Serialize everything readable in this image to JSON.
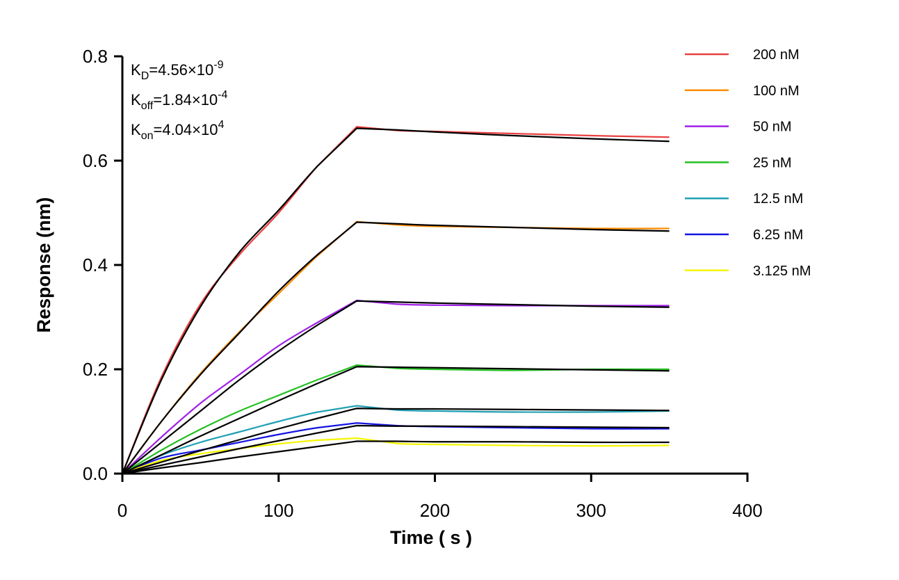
{
  "chart_data": {
    "type": "line",
    "xlabel": "Time ( s )",
    "ylabel": "Response (nm)",
    "xlim": [
      0,
      400
    ],
    "ylim": [
      0,
      0.8
    ],
    "xticks": [
      "0",
      "100",
      "200",
      "300",
      "400"
    ],
    "yticks": [
      "0.0",
      "0.2",
      "0.4",
      "0.6",
      "0.8"
    ],
    "grid": false,
    "legend_position": "right",
    "annotations": [
      {
        "main": "K",
        "sub": "D",
        "value": "=4.56×10",
        "exp": "-9"
      },
      {
        "main": "K",
        "sub": "off",
        "value": "=1.84×10",
        "exp": "-4"
      },
      {
        "main": "K",
        "sub": "on",
        "value": "=4.04×10",
        "exp": "4"
      }
    ],
    "x": [
      0,
      25,
      50,
      75,
      100,
      125,
      150,
      175,
      200,
      250,
      300,
      350
    ],
    "fit_color": "#000000",
    "series": [
      {
        "name": "200 nM",
        "color": "#e8403f",
        "values": [
          0,
          0.185,
          0.325,
          0.42,
          0.5,
          0.59,
          0.665,
          0.658,
          0.656,
          0.652,
          0.648,
          0.645
        ],
        "fit": [
          0,
          0.18,
          0.32,
          0.425,
          0.505,
          0.59,
          0.662,
          0.659,
          0.655,
          0.648,
          0.642,
          0.637
        ]
      },
      {
        "name": "100 nM",
        "color": "#ff8c00",
        "values": [
          0,
          0.1,
          0.192,
          0.272,
          0.345,
          0.418,
          0.483,
          0.477,
          0.474,
          0.472,
          0.47,
          0.47
        ],
        "fit": [
          0,
          0.1,
          0.19,
          0.27,
          0.35,
          0.42,
          0.482,
          0.479,
          0.476,
          0.472,
          0.468,
          0.465
        ]
      },
      {
        "name": "50 nM",
        "color": "#a020e8",
        "values": [
          0,
          0.07,
          0.135,
          0.19,
          0.245,
          0.29,
          0.332,
          0.325,
          0.323,
          0.322,
          0.322,
          0.322
        ],
        "fit": [
          0,
          0.06,
          0.12,
          0.18,
          0.235,
          0.285,
          0.331,
          0.329,
          0.327,
          0.324,
          0.321,
          0.319
        ]
      },
      {
        "name": "25 nM",
        "color": "#22c022",
        "values": [
          0,
          0.045,
          0.085,
          0.12,
          0.15,
          0.18,
          0.208,
          0.202,
          0.2,
          0.198,
          0.2,
          0.2
        ],
        "fit": [
          0,
          0.036,
          0.072,
          0.106,
          0.14,
          0.173,
          0.205,
          0.204,
          0.203,
          0.201,
          0.199,
          0.197
        ]
      },
      {
        "name": "12.5 nM",
        "color": "#1fa0b4",
        "values": [
          0,
          0.035,
          0.06,
          0.08,
          0.1,
          0.118,
          0.13,
          0.122,
          0.12,
          0.118,
          0.118,
          0.12
        ],
        "fit": [
          0,
          0.022,
          0.044,
          0.065,
          0.086,
          0.106,
          0.125,
          0.124,
          0.124,
          0.123,
          0.122,
          0.121
        ]
      },
      {
        "name": "6.25 nM",
        "color": "#1414e0",
        "values": [
          0,
          0.03,
          0.045,
          0.06,
          0.075,
          0.088,
          0.097,
          0.092,
          0.09,
          0.088,
          0.086,
          0.086
        ],
        "fit": [
          0,
          0.016,
          0.032,
          0.048,
          0.063,
          0.078,
          0.092,
          0.091,
          0.091,
          0.09,
          0.089,
          0.088
        ]
      },
      {
        "name": "3.125 nM",
        "color": "#f5f500",
        "values": [
          0,
          0.025,
          0.038,
          0.048,
          0.057,
          0.064,
          0.068,
          0.058,
          0.056,
          0.054,
          0.053,
          0.054
        ],
        "fit": [
          0,
          0.011,
          0.021,
          0.032,
          0.042,
          0.052,
          0.062,
          0.062,
          0.061,
          0.061,
          0.06,
          0.06
        ]
      }
    ]
  }
}
